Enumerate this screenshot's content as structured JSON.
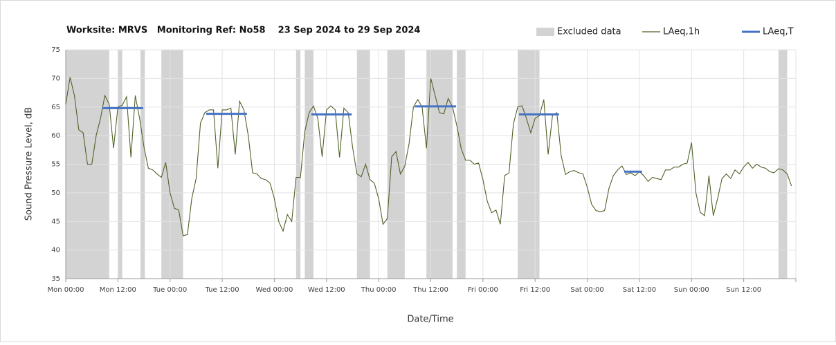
{
  "chart_data": {
    "type": "line",
    "title": "Worksite: MRVS   Monitoring Ref: No58    23 Sep 2024 to 29 Sep 2024",
    "xlabel": "Date/Time",
    "ylabel": "Sound Pressure Level, dB",
    "xlim": [
      0,
      168
    ],
    "xticks": [
      {
        "value": 0,
        "label": "Mon 00:00"
      },
      {
        "value": 12,
        "label": "Mon 12:00"
      },
      {
        "value": 24,
        "label": "Tue 00:00"
      },
      {
        "value": 36,
        "label": "Tue 12:00"
      },
      {
        "value": 48,
        "label": "Wed 00:00"
      },
      {
        "value": 60,
        "label": "Wed 12:00"
      },
      {
        "value": 72,
        "label": "Thu 00:00"
      },
      {
        "value": 84,
        "label": "Thu 12:00"
      },
      {
        "value": 96,
        "label": "Fri 00:00"
      },
      {
        "value": 108,
        "label": "Fri 12:00"
      },
      {
        "value": 120,
        "label": "Sat 00:00"
      },
      {
        "value": 132,
        "label": "Sat 12:00"
      },
      {
        "value": 144,
        "label": "Sun 00:00"
      },
      {
        "value": 156,
        "label": "Sun 12:00"
      },
      {
        "value": 168,
        "label": ""
      }
    ],
    "ylim": [
      35,
      75
    ],
    "yticks": [
      35,
      40,
      45,
      50,
      55,
      60,
      65,
      70,
      75
    ],
    "grid": true,
    "x": [
      0,
      1,
      2,
      3,
      4,
      5,
      6,
      7,
      8,
      9,
      10,
      11,
      12,
      13,
      14,
      15,
      16,
      17,
      18,
      19,
      20,
      21,
      22,
      23,
      24,
      25,
      26,
      27,
      28,
      29,
      30,
      31,
      32,
      33,
      34,
      35,
      36,
      37,
      38,
      39,
      40,
      41,
      42,
      43,
      44,
      45,
      46,
      47,
      48,
      49,
      50,
      51,
      52,
      53,
      54,
      55,
      56,
      57,
      58,
      59,
      60,
      61,
      62,
      63,
      64,
      65,
      66,
      67,
      68,
      69,
      70,
      71,
      72,
      73,
      74,
      75,
      76,
      77,
      78,
      79,
      80,
      81,
      82,
      83,
      84,
      85,
      86,
      87,
      88,
      89,
      90,
      91,
      92,
      93,
      94,
      95,
      96,
      97,
      98,
      99,
      100,
      101,
      102,
      103,
      104,
      105,
      106,
      107,
      108,
      109,
      110,
      111,
      112,
      113,
      114,
      115,
      116,
      117,
      118,
      119,
      120,
      121,
      122,
      123,
      124,
      125,
      126,
      127,
      128,
      129,
      130,
      131,
      132,
      133,
      134,
      135,
      136,
      137,
      138,
      139,
      140,
      141,
      142,
      143,
      144,
      145,
      146,
      147,
      148,
      149,
      150,
      151,
      152,
      153,
      154,
      155,
      156,
      157,
      158,
      159,
      160,
      161,
      162,
      163,
      164,
      165,
      166,
      167
    ],
    "series": [
      {
        "name": "Excluded data",
        "color": "#d3d3d3",
        "spans": [
          [
            0,
            10
          ],
          [
            12.1,
            13
          ],
          [
            17.2,
            18.2
          ],
          [
            22,
            27
          ],
          [
            53,
            54
          ],
          [
            55,
            57
          ],
          [
            67,
            70
          ],
          [
            74,
            78
          ],
          [
            83,
            89
          ],
          [
            90,
            92
          ],
          [
            104,
            109
          ],
          [
            164,
            166
          ]
        ]
      },
      {
        "name": "LAeq,1h",
        "color": "#4f6228",
        "values": [
          65.5,
          70.2,
          67,
          61,
          60.5,
          55,
          55,
          60,
          63,
          67,
          65.5,
          57.8,
          65,
          65.3,
          66.8,
          56.2,
          67,
          63,
          58,
          54.3,
          54,
          53.3,
          52.7,
          55.3,
          50,
          47.3,
          47,
          42.5,
          42.7,
          49,
          52.5,
          62.2,
          64,
          64.5,
          64.5,
          54.3,
          64.5,
          64.5,
          64.8,
          56.7,
          66,
          64.5,
          60,
          53.5,
          53.3,
          52.5,
          52.3,
          51.7,
          49,
          45,
          43.3,
          46.2,
          45,
          52.7,
          52.7,
          60.7,
          64,
          65.2,
          63,
          56.3,
          64.5,
          65.2,
          64.5,
          56.2,
          64.8,
          64,
          58,
          53.3,
          52.8,
          55,
          52.3,
          51.7,
          49,
          44.5,
          45.5,
          56.3,
          57.2,
          53.3,
          54.6,
          58.6,
          65,
          66.3,
          65,
          57.8,
          70,
          67,
          64,
          63.8,
          66.5,
          65,
          61.7,
          57.7,
          55.7,
          55.7,
          55,
          55.2,
          52.3,
          48.5,
          46.5,
          47,
          44.5,
          53,
          53.5,
          62,
          65,
          65.2,
          63,
          60.5,
          63,
          63.5,
          66.3,
          56.7,
          63.5,
          64,
          56.5,
          53.2,
          53.7,
          53.9,
          53.5,
          53.3,
          51,
          48,
          46.9,
          46.7,
          46.9,
          50.8,
          53,
          54,
          54.7,
          53.2,
          53.5,
          53,
          53.7,
          53,
          52,
          52.7,
          52.5,
          52.3,
          54,
          54,
          54.5,
          54.5,
          55,
          55.2,
          58.8,
          50,
          46.6,
          46,
          53,
          46,
          49,
          52.5,
          53.3,
          52.5,
          54,
          53.3,
          54.5,
          55.3,
          54.3,
          55,
          54.5,
          54.3,
          53.7,
          53.5,
          54.2,
          54,
          53.3,
          51.2
        ]
      },
      {
        "name": "LAeq,T",
        "color": "#4472c4",
        "segments": [
          {
            "x": [
              8.4,
              17.8
            ],
            "value": 64.8
          },
          {
            "x": [
              32.3,
              41.7
            ],
            "value": 63.8
          },
          {
            "x": [
              56.5,
              65.8
            ],
            "value": 63.7
          },
          {
            "x": [
              80.3,
              89.8
            ],
            "value": 65.1
          },
          {
            "x": [
              104.3,
              113.5
            ],
            "value": 63.7
          },
          {
            "x": [
              128.5,
              132.6
            ],
            "value": 53.7
          }
        ]
      }
    ]
  }
}
